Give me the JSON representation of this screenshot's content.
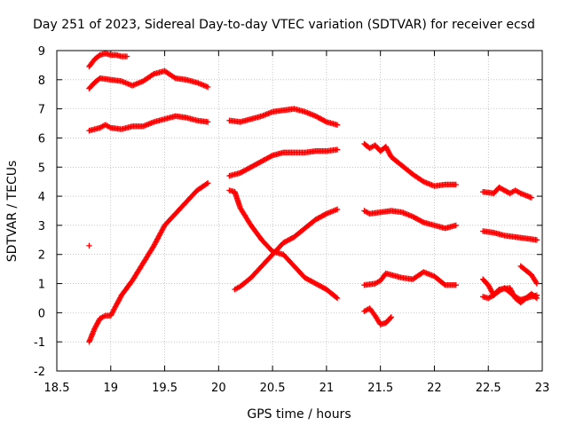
{
  "chart_data": {
    "type": "scatter",
    "title": "Day 251 of 2023, Sidereal Day-to-day VTEC variation (SDTVAR) for receiver ecsd",
    "xlabel": "GPS time / hours",
    "ylabel": "SDTVAR / TECUs",
    "xlim": [
      18.5,
      23
    ],
    "ylim": [
      -2,
      9
    ],
    "x_ticks": [
      18.5,
      19,
      19.5,
      20,
      20.5,
      21,
      21.5,
      22,
      22.5,
      23
    ],
    "y_ticks": [
      -2,
      -1,
      0,
      1,
      2,
      3,
      4,
      5,
      6,
      7,
      8,
      9
    ],
    "grid": true,
    "marker": "+",
    "marker_color": "#ff0000",
    "series": [
      {
        "name": "trace-1",
        "x": [
          18.8,
          18.85,
          18.9,
          18.95,
          19.0,
          19.05,
          19.1,
          19.15
        ],
        "values": [
          8.45,
          8.7,
          8.85,
          8.9,
          8.85,
          8.85,
          8.8,
          8.8
        ]
      },
      {
        "name": "trace-2",
        "x": [
          18.8,
          18.85,
          18.9,
          19.0,
          19.1,
          19.2,
          19.3,
          19.4,
          19.5,
          19.6,
          19.7,
          19.8,
          19.9
        ],
        "values": [
          7.7,
          7.9,
          8.05,
          8.0,
          7.95,
          7.8,
          7.95,
          8.2,
          8.3,
          8.05,
          8.0,
          7.9,
          7.75
        ]
      },
      {
        "name": "trace-3",
        "x": [
          18.8,
          18.9,
          18.95,
          19.0,
          19.1,
          19.2,
          19.3,
          19.4,
          19.5,
          19.6,
          19.7,
          19.8,
          19.9
        ],
        "values": [
          6.25,
          6.35,
          6.45,
          6.35,
          6.3,
          6.4,
          6.4,
          6.55,
          6.65,
          6.75,
          6.7,
          6.6,
          6.55
        ]
      },
      {
        "name": "trace-4",
        "x": [
          18.8
        ],
        "values": [
          2.3
        ]
      },
      {
        "name": "trace-5",
        "x": [
          18.8,
          18.85,
          18.9,
          18.95,
          19.0,
          19.1,
          19.2,
          19.3,
          19.4,
          19.5,
          19.6,
          19.7,
          19.8,
          19.9
        ],
        "values": [
          -1.0,
          -0.55,
          -0.2,
          -0.1,
          -0.1,
          0.6,
          1.1,
          1.7,
          2.3,
          3.0,
          3.4,
          3.8,
          4.2,
          4.45
        ]
      },
      {
        "name": "trace-6",
        "x": [
          20.1,
          20.2,
          20.3,
          20.4,
          20.5,
          20.6,
          20.7,
          20.8,
          20.9,
          21.0,
          21.1
        ],
        "values": [
          6.6,
          6.55,
          6.65,
          6.75,
          6.9,
          6.95,
          7.0,
          6.9,
          6.75,
          6.55,
          6.45
        ]
      },
      {
        "name": "trace-7",
        "x": [
          20.1,
          20.2,
          20.3,
          20.4,
          20.5,
          20.6,
          20.7,
          20.8,
          20.9,
          21.0,
          21.1
        ],
        "values": [
          4.7,
          4.8,
          5.0,
          5.2,
          5.4,
          5.5,
          5.5,
          5.5,
          5.55,
          5.55,
          5.6
        ]
      },
      {
        "name": "trace-8",
        "x": [
          20.1,
          20.15,
          20.2,
          20.3,
          20.4,
          20.5,
          20.6,
          20.7,
          20.8,
          20.9,
          21.0,
          21.1
        ],
        "values": [
          4.2,
          4.15,
          3.6,
          3.0,
          2.5,
          2.1,
          2.0,
          1.6,
          1.2,
          1.0,
          0.8,
          0.5
        ]
      },
      {
        "name": "trace-9",
        "x": [
          20.15,
          20.2,
          20.3,
          20.4,
          20.5,
          20.6,
          20.7,
          20.8,
          20.9,
          21.0,
          21.1
        ],
        "values": [
          0.8,
          0.9,
          1.2,
          1.6,
          2.0,
          2.4,
          2.6,
          2.9,
          3.2,
          3.4,
          3.55
        ]
      },
      {
        "name": "trace-10",
        "x": [
          21.35,
          21.4,
          21.45,
          21.5,
          21.55,
          21.6,
          21.7,
          21.8,
          21.9,
          22.0,
          22.1,
          22.2
        ],
        "values": [
          5.8,
          5.65,
          5.75,
          5.55,
          5.7,
          5.35,
          5.05,
          4.75,
          4.5,
          4.35,
          4.4,
          4.4
        ]
      },
      {
        "name": "trace-11",
        "x": [
          21.35,
          21.4,
          21.5,
          21.6,
          21.7,
          21.8,
          21.9,
          22.0,
          22.1,
          22.2
        ],
        "values": [
          3.5,
          3.4,
          3.45,
          3.5,
          3.45,
          3.3,
          3.1,
          3.0,
          2.9,
          3.0
        ]
      },
      {
        "name": "trace-12",
        "x": [
          21.35,
          21.45,
          21.5,
          21.55,
          21.6,
          21.7,
          21.8,
          21.9,
          22.0,
          22.1,
          22.2
        ],
        "values": [
          0.95,
          1.0,
          1.1,
          1.35,
          1.3,
          1.2,
          1.15,
          1.4,
          1.25,
          0.95,
          0.95
        ]
      },
      {
        "name": "trace-13",
        "x": [
          21.35,
          21.4,
          21.45,
          21.5,
          21.55,
          21.6
        ],
        "values": [
          0.05,
          0.15,
          -0.1,
          -0.4,
          -0.35,
          -0.15
        ]
      },
      {
        "name": "trace-14",
        "x": [
          22.45,
          22.55,
          22.6,
          22.7,
          22.75,
          22.8,
          22.9
        ],
        "values": [
          4.15,
          4.1,
          4.3,
          4.1,
          4.2,
          4.1,
          3.95
        ]
      },
      {
        "name": "trace-15",
        "x": [
          22.45,
          22.55,
          22.65,
          22.75,
          22.85,
          22.95
        ],
        "values": [
          2.8,
          2.75,
          2.65,
          2.6,
          2.55,
          2.5
        ]
      },
      {
        "name": "trace-16",
        "x": [
          22.45,
          22.5,
          22.55,
          22.6,
          22.7,
          22.75,
          22.8,
          22.85,
          22.9,
          22.95
        ],
        "values": [
          1.15,
          0.95,
          0.6,
          0.8,
          0.85,
          0.5,
          0.35,
          0.5,
          0.65,
          0.5
        ]
      },
      {
        "name": "trace-17",
        "x": [
          22.45,
          22.5,
          22.55,
          22.6,
          22.65,
          22.7,
          22.75,
          22.8,
          22.85,
          22.9,
          22.95
        ],
        "values": [
          0.55,
          0.5,
          0.6,
          0.75,
          0.85,
          0.7,
          0.55,
          0.45,
          0.5,
          0.55,
          0.6
        ]
      },
      {
        "name": "trace-18",
        "x": [
          22.8,
          22.85,
          22.9,
          22.95
        ],
        "values": [
          1.6,
          1.45,
          1.3,
          1.0
        ]
      }
    ]
  }
}
